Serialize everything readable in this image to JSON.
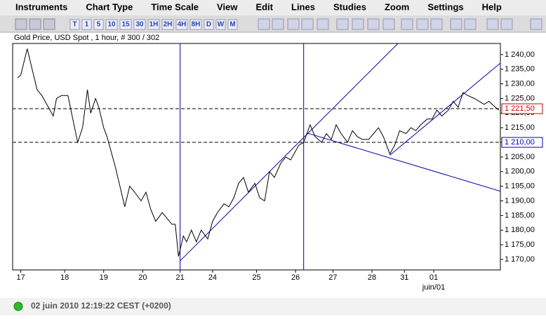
{
  "menu": [
    "Instruments",
    "Chart Type",
    "Time Scale",
    "View",
    "Edit",
    "Lines",
    "Studies",
    "Zoom",
    "Settings",
    "Help"
  ],
  "toolbar": {
    "buttons": [
      "T",
      "1",
      "5",
      "10",
      "15",
      "30",
      "1H",
      "2H",
      "4H",
      "8H",
      "D",
      "W",
      "M"
    ]
  },
  "chart_data": {
    "type": "line",
    "title": "Gold Price, USD Spot , 1 hour, # 300 / 302",
    "xlim": [
      0,
      300
    ],
    "xticks": [
      {
        "value": 5,
        "label": "17"
      },
      {
        "value": 32,
        "label": "18"
      },
      {
        "value": 56,
        "label": "19"
      },
      {
        "value": 80,
        "label": "20"
      },
      {
        "value": 103,
        "label": "21"
      },
      {
        "value": 123,
        "label": "24"
      },
      {
        "value": 150,
        "label": "25"
      },
      {
        "value": 174,
        "label": "26"
      },
      {
        "value": 197,
        "label": "27"
      },
      {
        "value": 221,
        "label": "28"
      },
      {
        "value": 241,
        "label": "31"
      },
      {
        "value": 259,
        "label": "01"
      }
    ],
    "x_sublabel": {
      "value": 259,
      "label": "juin/01"
    },
    "ylim": [
      1166.4,
      1243.8
    ],
    "yticks": [
      {
        "value": 1170,
        "label": "1 170,00"
      },
      {
        "value": 1175,
        "label": "1 175,00"
      },
      {
        "value": 1180,
        "label": "1 180,00"
      },
      {
        "value": 1185,
        "label": "1 185,00"
      },
      {
        "value": 1190,
        "label": "1 190,00"
      },
      {
        "value": 1195,
        "label": "1 195,00"
      },
      {
        "value": 1200,
        "label": "1 200,00"
      },
      {
        "value": 1205,
        "label": "1 205,00"
      },
      {
        "value": 1210,
        "label": "1 210,00"
      },
      {
        "value": 1215,
        "label": "1 215,00"
      },
      {
        "value": 1220,
        "label": "1 220,00"
      },
      {
        "value": 1225,
        "label": "1 225,00"
      },
      {
        "value": 1230,
        "label": "1 230,00"
      },
      {
        "value": 1235,
        "label": "1 235,00"
      },
      {
        "value": 1240,
        "label": "1 240,00"
      }
    ],
    "series": [
      {
        "color": "#000000",
        "x": [
          3,
          5,
          9,
          12,
          15,
          18,
          22,
          25,
          27,
          30,
          34,
          37,
          40,
          43,
          46,
          48,
          51,
          53,
          56,
          58,
          60,
          63,
          66,
          69,
          72,
          75,
          79,
          82,
          85,
          88,
          92,
          95,
          98,
          100,
          102,
          105,
          107,
          110,
          113,
          116,
          120,
          123,
          126,
          130,
          133,
          136,
          139,
          142,
          145,
          149,
          152,
          155,
          158,
          161,
          165,
          168,
          171,
          174,
          176,
          179,
          181,
          183,
          186,
          190,
          193,
          196,
          199,
          202,
          206,
          209,
          212,
          215,
          219,
          222,
          225,
          228,
          232,
          235,
          238,
          242,
          245,
          248,
          251,
          255,
          258,
          261,
          264,
          268,
          271,
          274,
          277,
          280,
          284,
          287,
          290,
          293,
          297,
          299
        ],
        "values": [
          1232,
          1233,
          1242,
          1235,
          1228,
          1226,
          1222,
          1219,
          1225,
          1226,
          1226,
          1218,
          1210,
          1215,
          1228,
          1220,
          1225,
          1222,
          1215,
          1212,
          1208,
          1202,
          1195,
          1188,
          1195,
          1193,
          1190,
          1193,
          1187,
          1183,
          1186,
          1184,
          1182,
          1182,
          1171,
          1178,
          1176,
          1180,
          1176,
          1180,
          1177,
          1183,
          1186,
          1189,
          1188,
          1191,
          1196,
          1198,
          1193,
          1196,
          1191,
          1190,
          1200,
          1198,
          1203,
          1205,
          1204,
          1207,
          1209,
          1210,
          1213,
          1216,
          1212,
          1210,
          1213,
          1211,
          1216,
          1213,
          1210,
          1214,
          1212,
          1211,
          1211,
          1213,
          1215,
          1212,
          1206,
          1209,
          1214,
          1213,
          1215,
          1214,
          1216,
          1218,
          1218,
          1221,
          1219,
          1221,
          1224,
          1222,
          1227,
          1226,
          1225,
          1224,
          1223,
          1224,
          1222,
          1221
        ]
      }
    ],
    "hlines": [
      {
        "value": 1221.5,
        "label": "1 221,50",
        "color": "#cc0000"
      },
      {
        "value": 1210,
        "label": "1 210,00",
        "color": "#0000cc"
      }
    ],
    "vlines": [
      103,
      179
    ],
    "trendlines": [
      {
        "x": [
          103,
          237
        ],
        "y": [
          1169.5,
          1243.8
        ]
      },
      {
        "x": [
          232,
          300
        ],
        "y": [
          1205.6,
          1237.1
        ]
      },
      {
        "x": [
          181,
          300
        ],
        "y": [
          1213.2,
          1193.3
        ]
      }
    ],
    "drawing_color": "#0000aa"
  },
  "status": "02 juin 2010 12:19:22  CEST (+0200)"
}
